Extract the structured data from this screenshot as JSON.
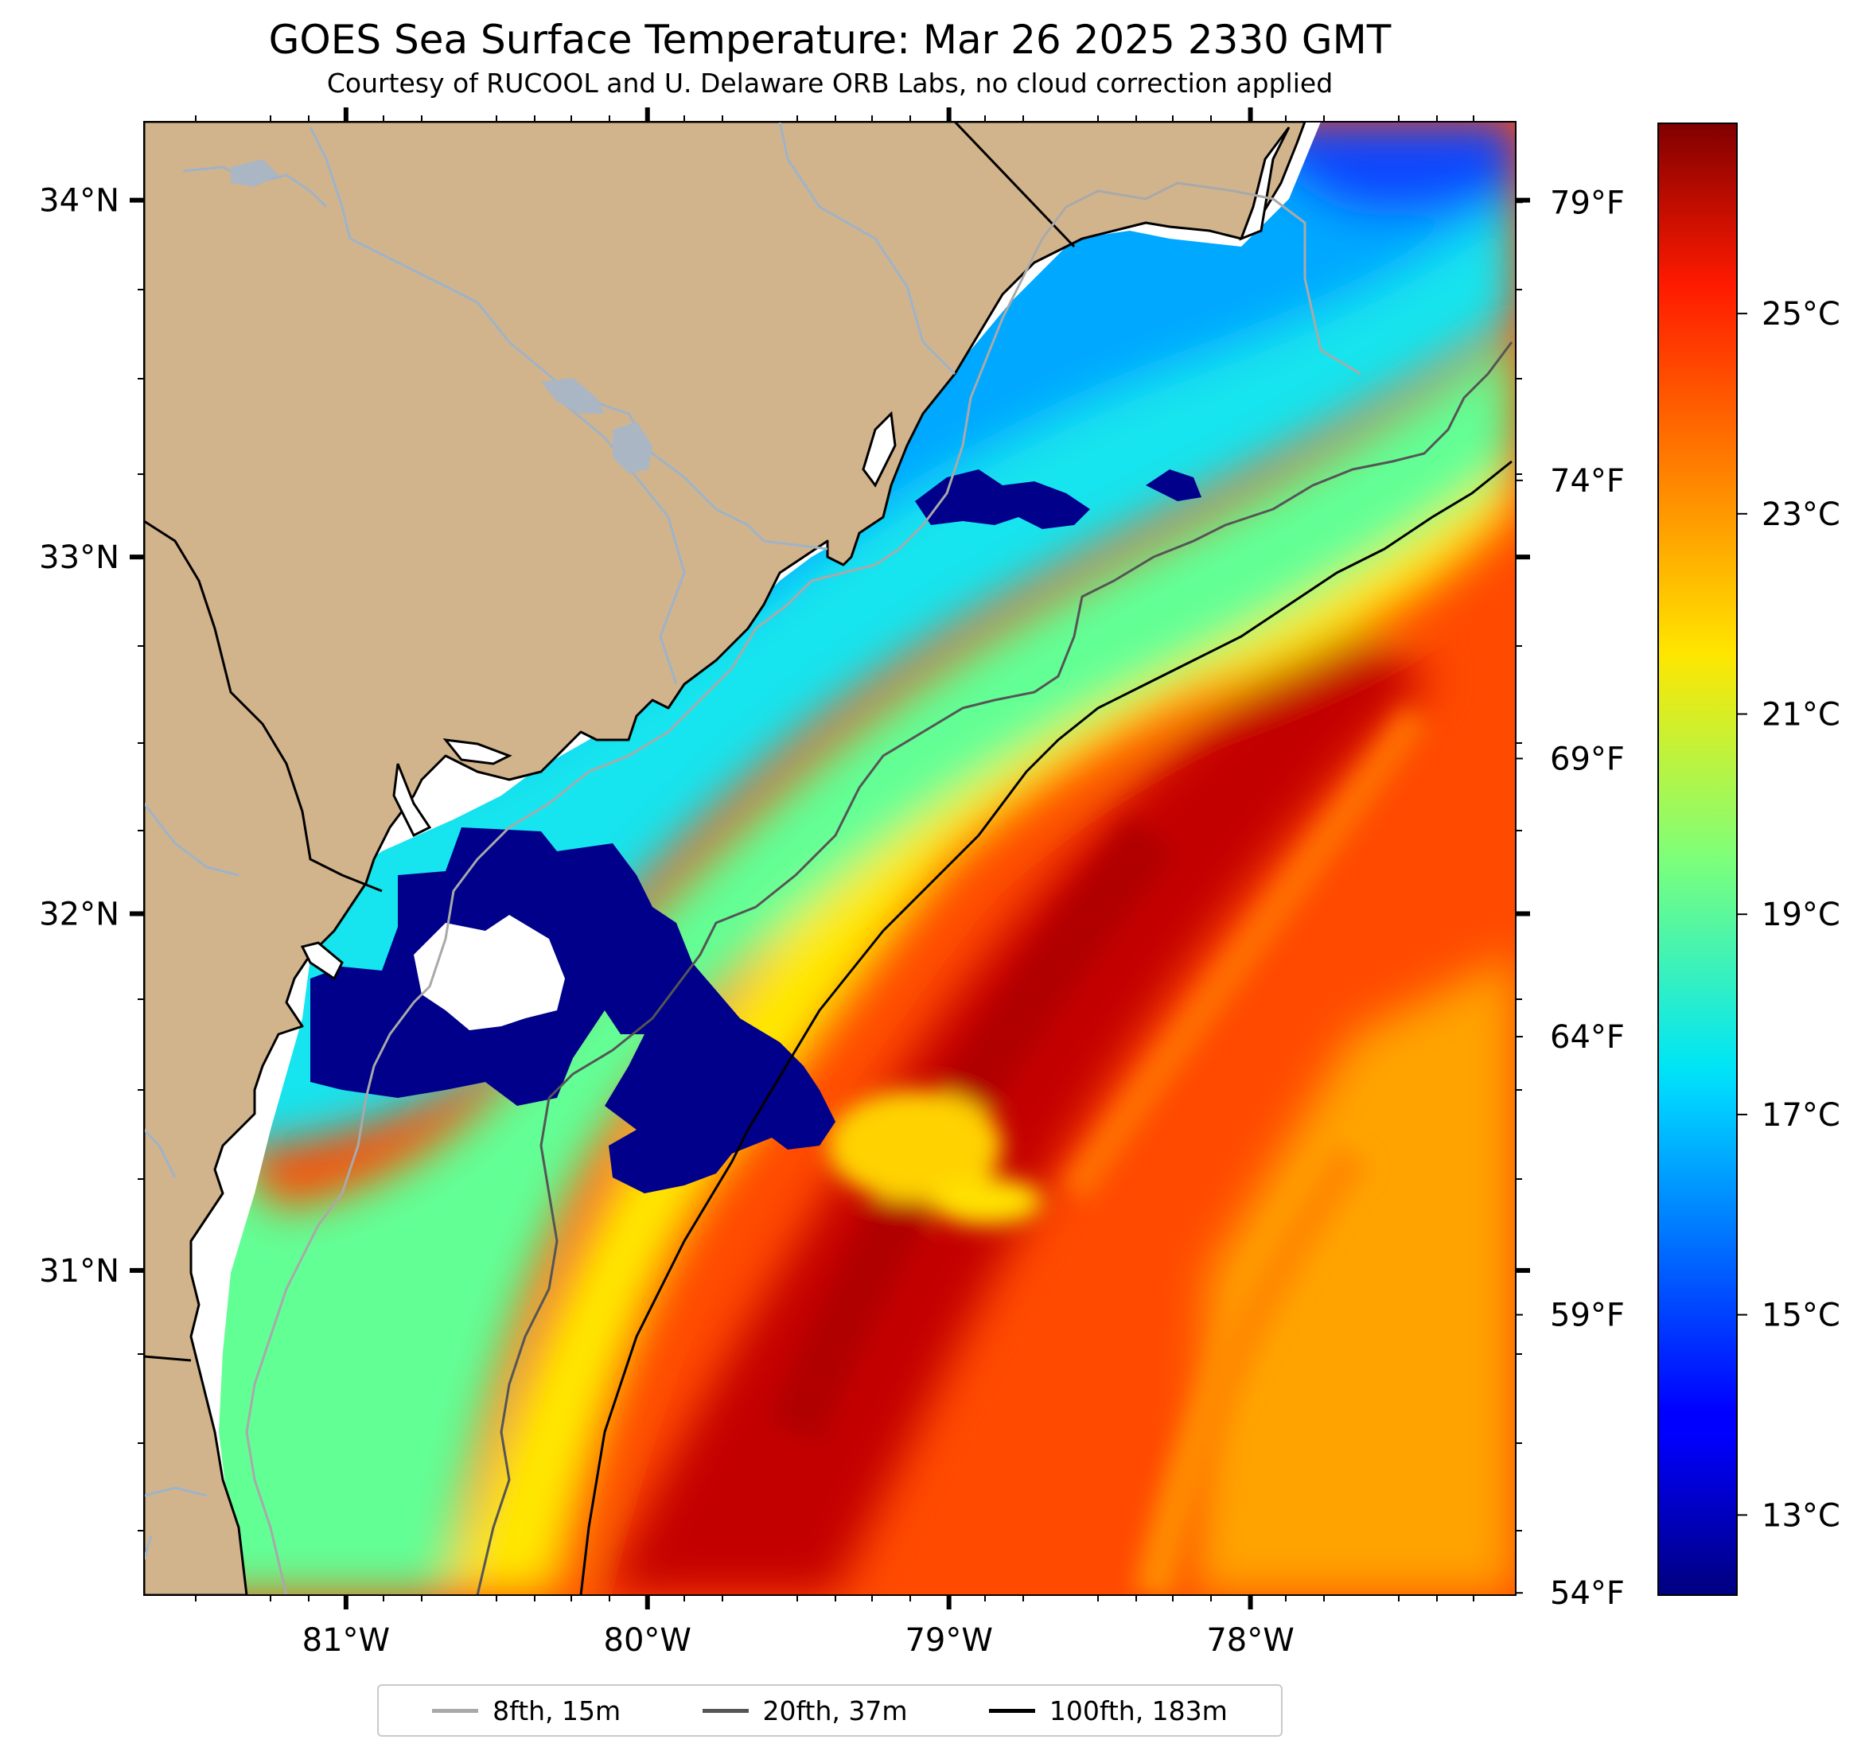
{
  "title": "GOES Sea Surface Temperature: Mar 26 2025 2330 GMT",
  "subtitle": "Courtesy of RUCOOL and U. Delaware ORB Labs, no cloud correction applied",
  "map": {
    "lon_range": [
      -81.67,
      -77.12
    ],
    "lat_range": [
      30.09,
      34.22
    ],
    "lon_ticks": [
      {
        "value": -81,
        "label": "81°W"
      },
      {
        "value": -80,
        "label": "80°W"
      },
      {
        "value": -79,
        "label": "79°W"
      },
      {
        "value": -78,
        "label": "78°W"
      }
    ],
    "lat_ticks": [
      {
        "value": 34,
        "label": "34°N"
      },
      {
        "value": 33,
        "label": "33°N"
      },
      {
        "value": 32,
        "label": "32°N"
      },
      {
        "value": 31,
        "label": "31°N"
      }
    ],
    "fahrenheit_ticks": [
      {
        "value": 79,
        "label": "79°F"
      },
      {
        "value": 74,
        "label": "74°F"
      },
      {
        "value": 69,
        "label": "69°F"
      },
      {
        "value": 64,
        "label": "64°F"
      },
      {
        "value": 59,
        "label": "59°F"
      },
      {
        "value": 54,
        "label": "54°F"
      }
    ],
    "land_color": "#d2b48c",
    "no_data_color": "#ffffff",
    "cloud_color": "#00008b"
  },
  "colorbar": {
    "range_c": [
      12.2,
      26.9
    ],
    "ticks": [
      {
        "value": 25,
        "label": "25°C"
      },
      {
        "value": 23,
        "label": "23°C"
      },
      {
        "value": 21,
        "label": "21°C"
      },
      {
        "value": 19,
        "label": "19°C"
      },
      {
        "value": 17,
        "label": "17°C"
      },
      {
        "value": 15,
        "label": "15°C"
      },
      {
        "value": 13,
        "label": "13°C"
      }
    ],
    "colormap": "jet"
  },
  "legend": {
    "placement": "bottom-center",
    "items": [
      {
        "label": "8fth, 15m",
        "color": "#a9a9a9"
      },
      {
        "label": "20fth, 37m",
        "color": "#555555"
      },
      {
        "label": "100fth, 183m",
        "color": "#000000"
      }
    ]
  }
}
